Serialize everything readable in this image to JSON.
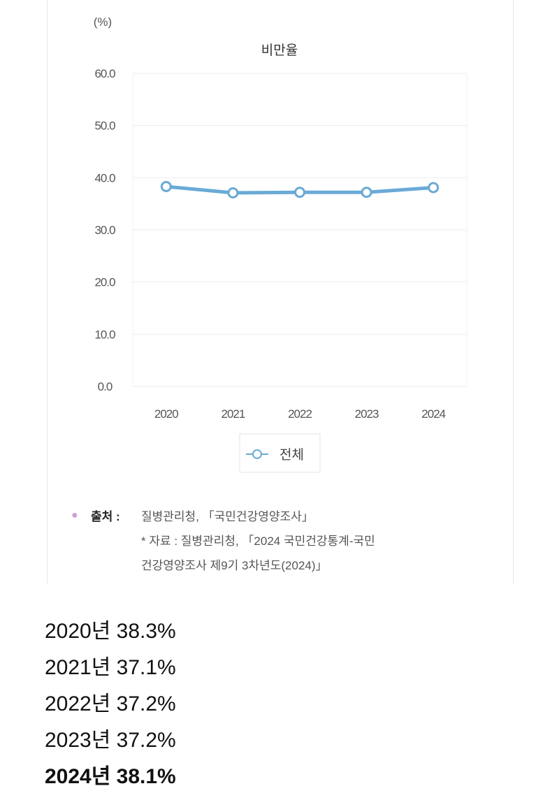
{
  "chart_data": {
    "type": "line",
    "title": "비만율",
    "unit_label": "(%)",
    "categories": [
      "2020",
      "2021",
      "2022",
      "2023",
      "2024"
    ],
    "series": [
      {
        "name": "전체",
        "values": [
          38.3,
          37.1,
          37.2,
          37.2,
          38.1
        ],
        "color": "#6aaad6"
      }
    ],
    "ylim": [
      0,
      60
    ],
    "yticks": [
      "0.0",
      "10.0",
      "20.0",
      "30.0",
      "40.0",
      "50.0",
      "60.0"
    ],
    "grid": true,
    "legend": "bottom"
  },
  "source": {
    "label": "출처 :",
    "line1": "질병관리청, 「국민건강영양조사」",
    "line2": "* 자료 : 질병관리청, 「2024 국민건강통계-국민",
    "line3": "건강영양조사 제9기 3차년도(2024)」"
  },
  "summary": [
    "2020년 38.3%",
    "2021년 37.1%",
    "2022년 37.2%",
    "2023년 37.2%",
    "2024년 38.1%"
  ]
}
